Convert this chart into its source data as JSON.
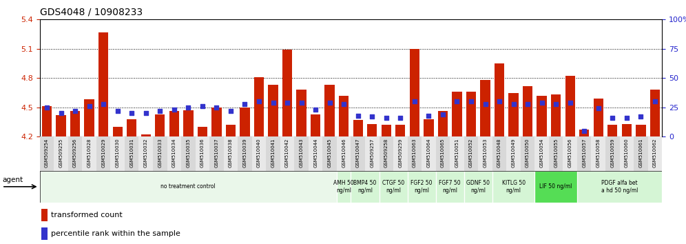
{
  "title": "GDS4048 / 10908233",
  "ylim_left": [
    4.2,
    5.4
  ],
  "ylim_right": [
    0,
    100
  ],
  "yticks_left": [
    4.2,
    4.5,
    4.8,
    5.1,
    5.4
  ],
  "yticks_right": [
    0,
    25,
    50,
    75,
    100
  ],
  "bar_color": "#cc2200",
  "dot_color": "#3333cc",
  "samples": [
    "GSM509254",
    "GSM509255",
    "GSM509256",
    "GSM510028",
    "GSM510029",
    "GSM510030",
    "GSM510031",
    "GSM510032",
    "GSM510033",
    "GSM510034",
    "GSM510035",
    "GSM510036",
    "GSM510037",
    "GSM510038",
    "GSM510039",
    "GSM510040",
    "GSM510041",
    "GSM510042",
    "GSM510043",
    "GSM510044",
    "GSM510045",
    "GSM510046",
    "GSM510047",
    "GSM509257",
    "GSM509258",
    "GSM509259",
    "GSM510063",
    "GSM510064",
    "GSM510065",
    "GSM510051",
    "GSM510052",
    "GSM510053",
    "GSM510048",
    "GSM510049",
    "GSM510050",
    "GSM510054",
    "GSM510055",
    "GSM510056",
    "GSM510057",
    "GSM510058",
    "GSM510059",
    "GSM510060",
    "GSM510061",
    "GSM510062"
  ],
  "bar_values": [
    4.51,
    4.42,
    4.46,
    4.58,
    5.27,
    4.3,
    4.38,
    4.22,
    4.43,
    4.46,
    4.47,
    4.3,
    4.5,
    4.32,
    4.5,
    4.81,
    4.73,
    5.09,
    4.68,
    4.43,
    4.73,
    4.62,
    4.37,
    4.33,
    4.32,
    4.32,
    5.1,
    4.38,
    4.46,
    4.66,
    4.66,
    4.78,
    4.95,
    4.65,
    4.72,
    4.62,
    4.63,
    4.82,
    4.27,
    4.59,
    4.32,
    4.33,
    4.32,
    4.68
  ],
  "percentile_values": [
    25,
    20,
    22,
    26,
    28,
    22,
    20,
    20,
    22,
    23,
    25,
    26,
    25,
    22,
    28,
    30,
    29,
    29,
    29,
    23,
    29,
    28,
    18,
    17,
    16,
    16,
    30,
    18,
    19,
    30,
    30,
    28,
    30,
    28,
    28,
    29,
    28,
    29,
    5,
    24,
    16,
    16,
    17,
    30
  ],
  "agent_groups": [
    {
      "label": "no treatment control",
      "start": 0,
      "end": 21,
      "color": "#eaf7ea",
      "bright": false
    },
    {
      "label": "AMH 50\nng/ml",
      "start": 21,
      "end": 22,
      "color": "#d5f5d5",
      "bright": false
    },
    {
      "label": "BMP4 50\nng/ml",
      "start": 22,
      "end": 24,
      "color": "#d5f5d5",
      "bright": false
    },
    {
      "label": "CTGF 50\nng/ml",
      "start": 24,
      "end": 26,
      "color": "#d5f5d5",
      "bright": false
    },
    {
      "label": "FGF2 50\nng/ml",
      "start": 26,
      "end": 28,
      "color": "#d5f5d5",
      "bright": false
    },
    {
      "label": "FGF7 50\nng/ml",
      "start": 28,
      "end": 30,
      "color": "#d5f5d5",
      "bright": false
    },
    {
      "label": "GDNF 50\nng/ml",
      "start": 30,
      "end": 32,
      "color": "#d5f5d5",
      "bright": false
    },
    {
      "label": "KITLG 50\nng/ml",
      "start": 32,
      "end": 35,
      "color": "#d5f5d5",
      "bright": false
    },
    {
      "label": "LIF 50 ng/ml",
      "start": 35,
      "end": 38,
      "color": "#55dd55",
      "bright": true
    },
    {
      "label": "PDGF alfa bet\na hd 50 ng/ml",
      "start": 38,
      "end": 44,
      "color": "#d5f5d5",
      "bright": false
    }
  ],
  "left_tick_color": "#cc2200",
  "right_tick_color": "#2222cc",
  "bar_width": 0.7,
  "fig_width": 9.96,
  "fig_height": 3.54,
  "dpi": 100
}
